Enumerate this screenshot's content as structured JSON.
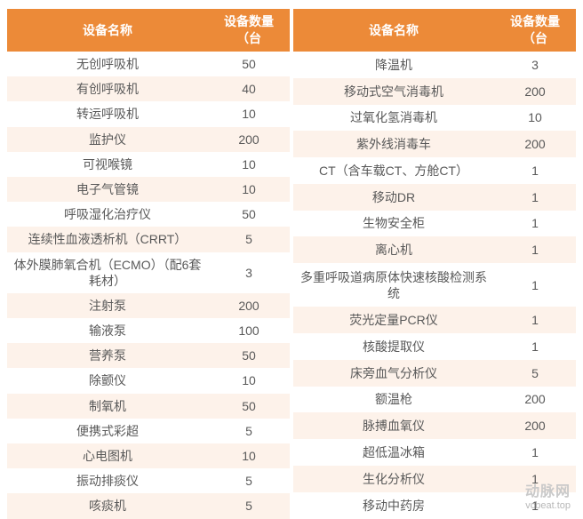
{
  "colors": {
    "header_bg": "#ec8a38",
    "header_fg": "#ffffff",
    "row_odd_bg": "#fdf2ea",
    "row_even_bg": "#ffffff",
    "cell_fg": "#595959"
  },
  "header": {
    "name": "设备名称",
    "qty": "设备数量（台"
  },
  "left": [
    {
      "name": "无创呼吸机",
      "qty": "50"
    },
    {
      "name": "有创呼吸机",
      "qty": "40"
    },
    {
      "name": "转运呼吸机",
      "qty": "10"
    },
    {
      "name": "监护仪",
      "qty": "200"
    },
    {
      "name": "可视喉镜",
      "qty": "10"
    },
    {
      "name": "电子气管镜",
      "qty": "10"
    },
    {
      "name": "呼吸湿化治疗仪",
      "qty": "50"
    },
    {
      "name": "连续性血液透析机（CRRT）",
      "qty": "5"
    },
    {
      "name": "体外膜肺氧合机（ECMO）（配6套耗材）",
      "qty": "3"
    },
    {
      "name": "注射泵",
      "qty": "200"
    },
    {
      "name": "输液泵",
      "qty": "100"
    },
    {
      "name": "营养泵",
      "qty": "50"
    },
    {
      "name": "除颤仪",
      "qty": "10"
    },
    {
      "name": "制氧机",
      "qty": "50"
    },
    {
      "name": "便携式彩超",
      "qty": "5"
    },
    {
      "name": "心电图机",
      "qty": "10"
    },
    {
      "name": "振动排痰仪",
      "qty": "5"
    },
    {
      "name": "咳痰机",
      "qty": "5"
    }
  ],
  "right": [
    {
      "name": "降温机",
      "qty": "3"
    },
    {
      "name": "移动式空气消毒机",
      "qty": "200"
    },
    {
      "name": "过氧化氢消毒机",
      "qty": "10"
    },
    {
      "name": "紫外线消毒车",
      "qty": "200"
    },
    {
      "name": "CT（含车载CT、方舱CT）",
      "qty": "1"
    },
    {
      "name": "移动DR",
      "qty": "1"
    },
    {
      "name": "生物安全柜",
      "qty": "1"
    },
    {
      "name": "离心机",
      "qty": "1"
    },
    {
      "name": "多重呼吸道病原体快速核酸检测系统",
      "qty": "1"
    },
    {
      "name": "荧光定量PCR仪",
      "qty": "1"
    },
    {
      "name": "核酸提取仪",
      "qty": "1"
    },
    {
      "name": "床旁血气分析仪",
      "qty": "5"
    },
    {
      "name": "额温枪",
      "qty": "200"
    },
    {
      "name": "脉搏血氧仪",
      "qty": "200"
    },
    {
      "name": "超低温冰箱",
      "qty": "1"
    },
    {
      "name": "生化分析仪",
      "qty": "1"
    },
    {
      "name": "移动中药房",
      "qty": "1"
    }
  ],
  "watermark": {
    "line1": "动脉网",
    "line2": "vcbeat.top"
  }
}
